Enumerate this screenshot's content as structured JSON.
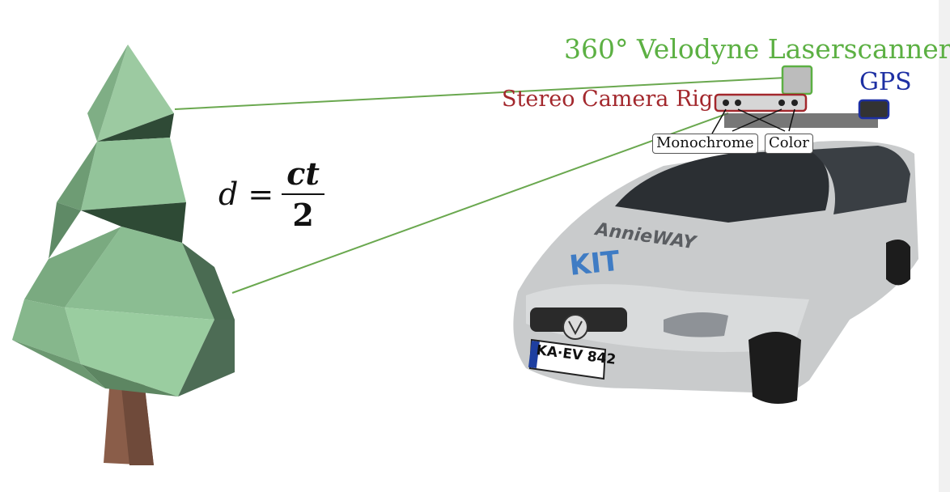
{
  "labels": {
    "lidar": "360° Velodyne Laserscanner",
    "stereo": "Stereo Camera Rig",
    "gps": "GPS",
    "monochrome": "Monochrome",
    "color": "Color"
  },
  "formula": {
    "lhs": "d =",
    "numerator": "ct",
    "denominator": "2"
  },
  "car_decal": {
    "brand": "KIT",
    "project": "AnnieWAY",
    "plate": "KA·EV 842"
  },
  "colors": {
    "lidar": "#5cb043",
    "stereo": "#a3282d",
    "gps": "#1d2fa3",
    "beam": "#6aa84f",
    "tree": "#8fbf92",
    "trunk": "#8a5d49",
    "car": "#c9cbcc"
  }
}
